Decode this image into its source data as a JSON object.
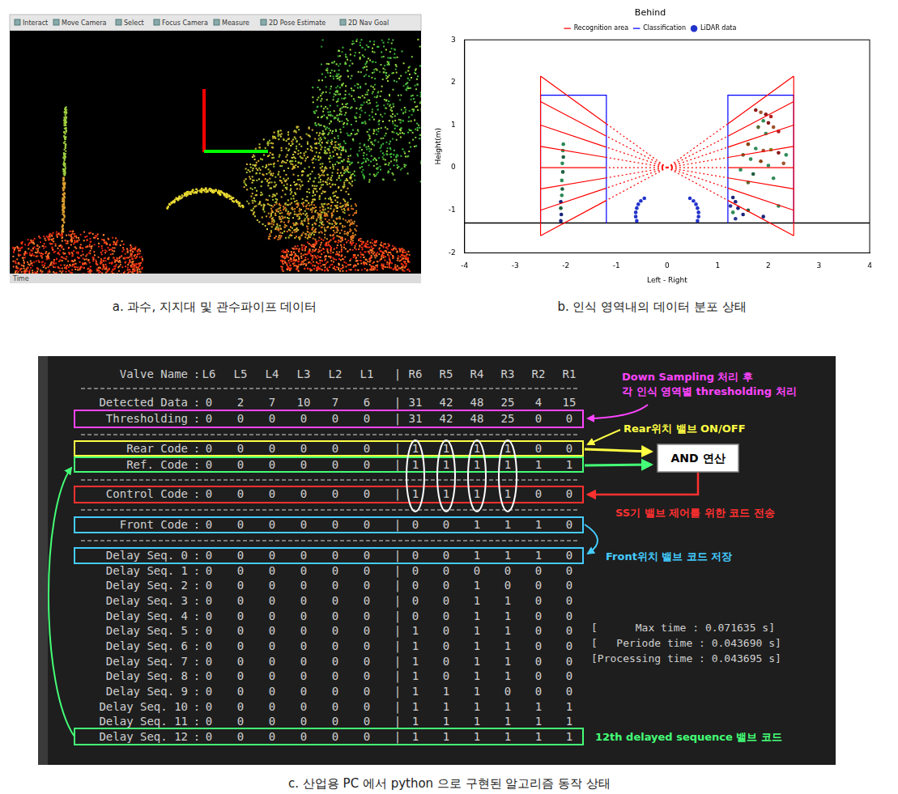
{
  "captions": {
    "a": "a. 과수, 지지대 및 관수파이프 데이터",
    "b": "b. 인식 영역내의 데이터 분포 상태",
    "c": "c. 산업용 PC 에서 python 으로 구현된 알고리즘 동작 상태"
  },
  "panel_a": {
    "toolbar": [
      "Interact",
      "Move Camera",
      "Select",
      "Focus Camera",
      "Measure",
      "2D Pose Estimate",
      "2D Nav Goal"
    ],
    "footer": "Time"
  },
  "chart_data": {
    "type": "scatter",
    "title": "Behind",
    "x_label": "Left - Right",
    "y_label": "Height(m)",
    "xlim": [
      -4,
      4
    ],
    "xticks": [
      -4,
      -3,
      -2,
      -1,
      0,
      1,
      2,
      3,
      4
    ],
    "ylim": [
      -2,
      3
    ],
    "yticks": [
      -2,
      -1,
      0,
      1,
      2,
      3
    ],
    "grid": false,
    "legend": "upper center",
    "baseline": {
      "y": -1.3,
      "color": "#000000"
    },
    "series": [
      {
        "name": "Recognition area",
        "type": "line",
        "color": "#ff0000",
        "segments": [
          {
            "line_style": "solid",
            "x": [
              1.2,
              2.5,
              null,
              1.2,
              2.5,
              null,
              1.2,
              2.5,
              null,
              1.2,
              2.5,
              null,
              1.2,
              2.5,
              null,
              1.2,
              2.5,
              null,
              1.2,
              2.5,
              null,
              1.2,
              2.5,
              null,
              -1.2,
              -2.5,
              null,
              -1.2,
              -2.5,
              null,
              -1.2,
              -2.5,
              null,
              -1.2,
              -2.5,
              null,
              -1.2,
              -2.5,
              null,
              -1.2,
              -2.5,
              null,
              -1.2,
              -2.5,
              null,
              -1.2,
              -2.5,
              null,
              2.5,
              2.5,
              null,
              -2.5,
              -2.5
            ],
            "y": [
              1.03,
              2.15,
              null,
              0.74,
              1.55,
              null,
              0.48,
              1.0,
              null,
              0.24,
              0.5,
              null,
              0,
              0,
              null,
              -0.24,
              -0.5,
              null,
              -0.48,
              -1.0,
              null,
              -0.77,
              -1.6,
              null,
              1.03,
              2.15,
              null,
              0.74,
              1.55,
              null,
              0.48,
              1.0,
              null,
              0.24,
              0.5,
              null,
              0,
              0,
              null,
              -0.24,
              -0.5,
              null,
              -0.48,
              -1.0,
              null,
              -0.77,
              -1.6,
              null,
              -1.6,
              2.15,
              null,
              -1.6,
              2.15
            ]
          },
          {
            "line_style": "dotted",
            "x": [
              0,
              1.2,
              null,
              0,
              1.2,
              null,
              0,
              1.2,
              null,
              0,
              1.2,
              null,
              0,
              1.2,
              null,
              0,
              1.2,
              null,
              0,
              1.2,
              null,
              0,
              1.2,
              null,
              0,
              -1.2,
              null,
              0,
              -1.2,
              null,
              0,
              -1.2,
              null,
              0,
              -1.2,
              null,
              0,
              -1.2,
              null,
              0,
              -1.2,
              null,
              0,
              -1.2,
              null,
              0,
              -1.2
            ],
            "y": [
              0,
              1.03,
              null,
              0,
              0.74,
              null,
              0,
              0.48,
              null,
              0,
              0.24,
              null,
              0,
              0,
              null,
              0,
              -0.24,
              null,
              0,
              -0.48,
              null,
              0,
              -0.77,
              null,
              0,
              1.03,
              null,
              0,
              0.74,
              null,
              0,
              0.48,
              null,
              0,
              0.24,
              null,
              0,
              0,
              null,
              0,
              -0.24,
              null,
              0,
              -0.48,
              null,
              0,
              -0.77
            ]
          }
        ]
      },
      {
        "name": "Classification",
        "type": "line",
        "color": "#0000ff",
        "line_style": "solid",
        "x": [
          1.2,
          1.2,
          2.5,
          2.5,
          null,
          -1.2,
          -1.2,
          -2.5,
          -2.5
        ],
        "y": [
          -1.3,
          1.7,
          1.7,
          -1.3,
          null,
          -1.3,
          1.7,
          1.7,
          -1.3
        ]
      },
      {
        "name": "LiDAR data",
        "type": "scatter",
        "marker": "circle",
        "x": [
          -0.45,
          -0.52,
          -0.57,
          -0.6,
          -0.62,
          -0.62,
          -0.6,
          0.45,
          0.52,
          0.57,
          0.6,
          0.62,
          0.62,
          0.6,
          -2.05,
          -2.06,
          -2.05,
          -2.07,
          -2.06,
          -2.08,
          -2.07,
          -2.08,
          -2.1,
          -2.1,
          -2.09,
          -2.1,
          1.75,
          1.85,
          1.95,
          2.05,
          1.9,
          2.0,
          2.1,
          1.8,
          2.2,
          1.95,
          1.6,
          1.75,
          1.9,
          2.05,
          2.2,
          2.35,
          1.5,
          1.65,
          1.85,
          2.0,
          2.3,
          1.45,
          1.7,
          2.1,
          1.6,
          1.3,
          1.35,
          1.25,
          1.4,
          1.3,
          1.5,
          1.35,
          1.6,
          1.9,
          2.2
        ],
        "y": [
          -0.72,
          -0.78,
          -0.86,
          -0.95,
          -1.05,
          -1.15,
          -1.25,
          -0.72,
          -0.78,
          -0.86,
          -0.95,
          -1.05,
          -1.15,
          -1.25,
          0.55,
          0.4,
          0.25,
          0.1,
          -0.1,
          -0.3,
          -0.5,
          -0.65,
          -0.8,
          -0.95,
          -1.1,
          -1.25,
          1.35,
          1.3,
          1.25,
          1.2,
          1.1,
          1.05,
          0.95,
          0.95,
          0.85,
          0.8,
          0.55,
          0.45,
          0.4,
          0.42,
          0.35,
          0.3,
          0.3,
          0.2,
          0.15,
          0.05,
          0.1,
          -0.05,
          -0.15,
          -0.25,
          -0.35,
          -0.7,
          -0.8,
          -0.9,
          -0.95,
          -1.05,
          -1.1,
          -1.2,
          -1.0,
          -1.15,
          -0.9
        ],
        "colors": [
          "#2233cc",
          "#2233cc",
          "#2233cc",
          "#2233cc",
          "#2233cc",
          "#2233cc",
          "#2233cc",
          "#2233cc",
          "#2233cc",
          "#2233cc",
          "#2233cc",
          "#2233cc",
          "#2233cc",
          "#2233cc",
          "#2e8b57",
          "#2e8b57",
          "#1f5f3f",
          "#2e8b57",
          "#1f5f3f",
          "#2e8b57",
          "#1f5f3f",
          "#2e8b57",
          "#1a237e",
          "#1f5f3f",
          "#1a237e",
          "#1a237e",
          "#8b1a1a",
          "#a0522d",
          "#8b1a1a",
          "#b22222",
          "#2e8b57",
          "#8b1a1a",
          "#a0522d",
          "#556b2f",
          "#b22222",
          "#2e8b57",
          "#8b4513",
          "#2e8b57",
          "#a0522d",
          "#6b8e23",
          "#8b1a1a",
          "#2e8b57",
          "#556b2f",
          "#2e8b57",
          "#8b4513",
          "#2e8b57",
          "#a0522d",
          "#2e8b57",
          "#1f5f3f",
          "#2e8b57",
          "#556b2f",
          "#1a237e",
          "#1a237e",
          "#283593",
          "#1a237e",
          "#2e8b57",
          "#1a237e",
          "#283593",
          "#1f5f3f",
          "#1a237e",
          "#2e8b57"
        ]
      }
    ]
  },
  "panel_c": {
    "header": "Valve Name",
    "left_valves": [
      "L6",
      "L5",
      "L4",
      "L3",
      "L2",
      "L1"
    ],
    "right_valves": [
      "R6",
      "R5",
      "R4",
      "R3",
      "R2",
      "R1"
    ],
    "label_separator": ":",
    "side_separator": "|",
    "rows": [
      {
        "label": "Detected Data",
        "left": [
          0,
          2,
          7,
          10,
          7,
          6
        ],
        "right": [
          31,
          42,
          48,
          25,
          4,
          15
        ]
      },
      {
        "label": "Thresholding",
        "left": [
          0,
          0,
          0,
          0,
          0,
          0
        ],
        "right": [
          31,
          42,
          48,
          25,
          0,
          0
        ]
      },
      {
        "label": "Rear Code",
        "left": [
          0,
          0,
          0,
          0,
          0,
          0
        ],
        "right": [
          1,
          1,
          1,
          1,
          0,
          0
        ]
      },
      {
        "label": "Ref. Code",
        "left": [
          0,
          0,
          0,
          0,
          0,
          0
        ],
        "right": [
          1,
          1,
          1,
          1,
          1,
          1
        ]
      },
      {
        "label": "Control Code",
        "left": [
          0,
          0,
          0,
          0,
          0,
          0
        ],
        "right": [
          1,
          1,
          1,
          1,
          0,
          0
        ]
      },
      {
        "label": "Front Code",
        "left": [
          0,
          0,
          0,
          0,
          0,
          0
        ],
        "right": [
          0,
          0,
          1,
          1,
          1,
          0
        ]
      },
      {
        "label": "Delay Seq. 0",
        "left": [
          0,
          0,
          0,
          0,
          0,
          0
        ],
        "right": [
          0,
          0,
          1,
          1,
          1,
          0
        ]
      },
      {
        "label": "Delay Seq. 1",
        "left": [
          0,
          0,
          0,
          0,
          0,
          0
        ],
        "right": [
          0,
          0,
          0,
          0,
          0,
          0
        ]
      },
      {
        "label": "Delay Seq. 2",
        "left": [
          0,
          0,
          0,
          0,
          0,
          0
        ],
        "right": [
          0,
          0,
          1,
          0,
          0,
          0
        ]
      },
      {
        "label": "Delay Seq. 3",
        "left": [
          0,
          0,
          0,
          0,
          0,
          0
        ],
        "right": [
          0,
          0,
          1,
          1,
          0,
          0
        ]
      },
      {
        "label": "Delay Seq. 4",
        "left": [
          0,
          0,
          0,
          0,
          0,
          0
        ],
        "right": [
          0,
          0,
          1,
          1,
          0,
          0
        ]
      },
      {
        "label": "Delay Seq. 5",
        "left": [
          0,
          0,
          0,
          0,
          0,
          0
        ],
        "right": [
          1,
          0,
          1,
          1,
          0,
          0
        ]
      },
      {
        "label": "Delay Seq. 6",
        "left": [
          0,
          0,
          0,
          0,
          0,
          0
        ],
        "right": [
          1,
          0,
          1,
          1,
          0,
          0
        ]
      },
      {
        "label": "Delay Seq. 7",
        "left": [
          0,
          0,
          0,
          0,
          0,
          0
        ],
        "right": [
          1,
          0,
          1,
          1,
          0,
          0
        ]
      },
      {
        "label": "Delay Seq. 8",
        "left": [
          0,
          0,
          0,
          0,
          0,
          0
        ],
        "right": [
          1,
          0,
          1,
          1,
          0,
          0
        ]
      },
      {
        "label": "Delay Seq. 9",
        "left": [
          0,
          0,
          0,
          0,
          0,
          0
        ],
        "right": [
          1,
          1,
          1,
          0,
          0,
          0
        ]
      },
      {
        "label": "Delay Seq. 10",
        "left": [
          0,
          0,
          0,
          0,
          0,
          0
        ],
        "right": [
          1,
          1,
          1,
          1,
          1,
          1
        ]
      },
      {
        "label": "Delay Seq. 11",
        "left": [
          0,
          0,
          0,
          0,
          0,
          0
        ],
        "right": [
          1,
          1,
          1,
          1,
          1,
          1
        ]
      },
      {
        "label": "Delay Seq. 12",
        "left": [
          0,
          0,
          0,
          0,
          0,
          0
        ],
        "right": [
          1,
          1,
          1,
          1,
          1,
          1
        ]
      }
    ],
    "annotations": {
      "thresholding": [
        "Down Sampling 처리 후",
        "각 인식 영역별 thresholding 처리"
      ],
      "rear": "Rear위치 밸브 ON/OFF",
      "and_box": "AND 연산",
      "control": "SS기 밸브 제어를 위한 코드 전송",
      "front": "Front위치 밸브 코드 저장",
      "delay": "12th delayed sequence 밸브 코드"
    },
    "timing": [
      "[      Max time : 0.071635 s]",
      "[   Periode time : 0.043690 s]",
      "[Processing time : 0.043695 s]"
    ]
  }
}
